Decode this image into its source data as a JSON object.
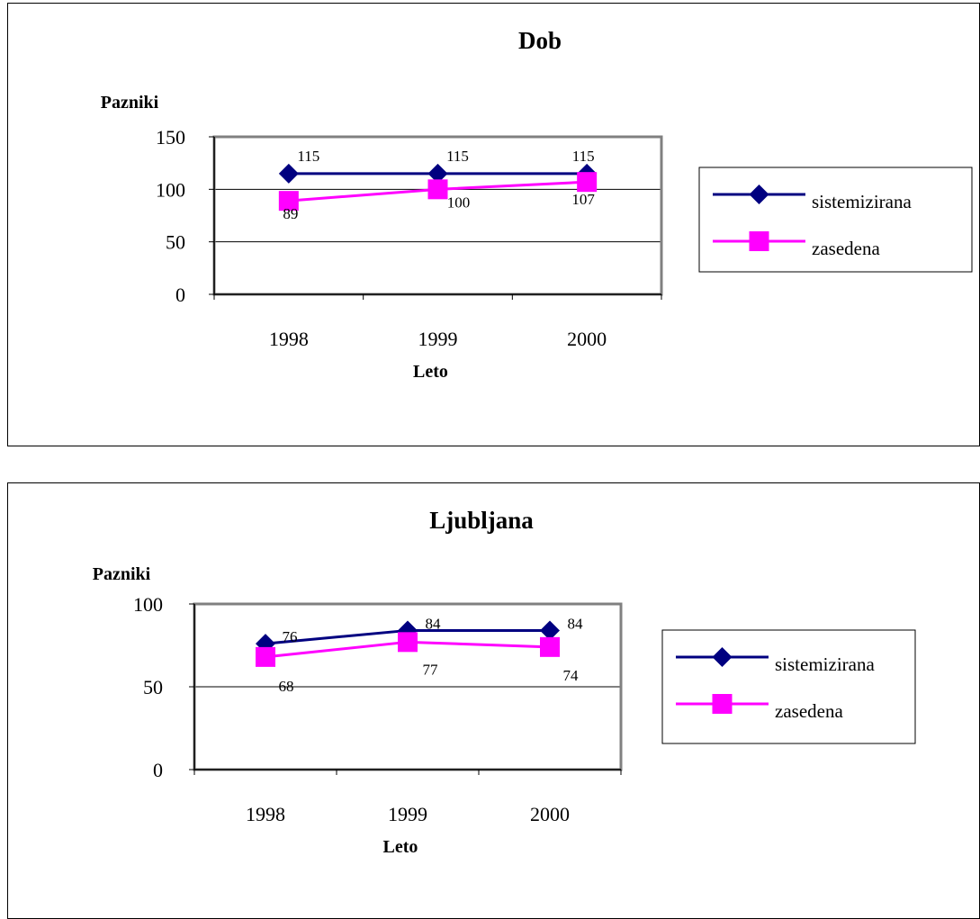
{
  "colors": {
    "sistemizirana": "#000080",
    "zasedena": "#ff00ff",
    "plot_border": "#808080",
    "gridline": "#000000"
  },
  "chart_data": [
    {
      "type": "line",
      "title": "Dob",
      "xlabel": "Leto",
      "ylabel": "Pazniki",
      "categories": [
        "1998",
        "1999",
        "2000"
      ],
      "ylim": [
        0,
        150
      ],
      "yticks": [
        0,
        50,
        100,
        150
      ],
      "grid": true,
      "legend_position": "right",
      "series": [
        {
          "name": "sistemizirana",
          "values": [
            115,
            115,
            115
          ],
          "marker": "diamond",
          "color": "#000080"
        },
        {
          "name": "zasedena",
          "values": [
            89,
            100,
            107
          ],
          "marker": "square",
          "color": "#ff00ff"
        }
      ]
    },
    {
      "type": "line",
      "title": "Ljubljana",
      "xlabel": "Leto",
      "ylabel": "Pazniki",
      "categories": [
        "1998",
        "1999",
        "2000"
      ],
      "ylim": [
        0,
        100
      ],
      "yticks": [
        0,
        50,
        100
      ],
      "grid": true,
      "legend_position": "right",
      "series": [
        {
          "name": "sistemizirana",
          "values": [
            76,
            84,
            84
          ],
          "marker": "diamond",
          "color": "#000080"
        },
        {
          "name": "zasedena",
          "values": [
            68,
            77,
            74
          ],
          "marker": "square",
          "color": "#ff00ff"
        }
      ]
    }
  ]
}
